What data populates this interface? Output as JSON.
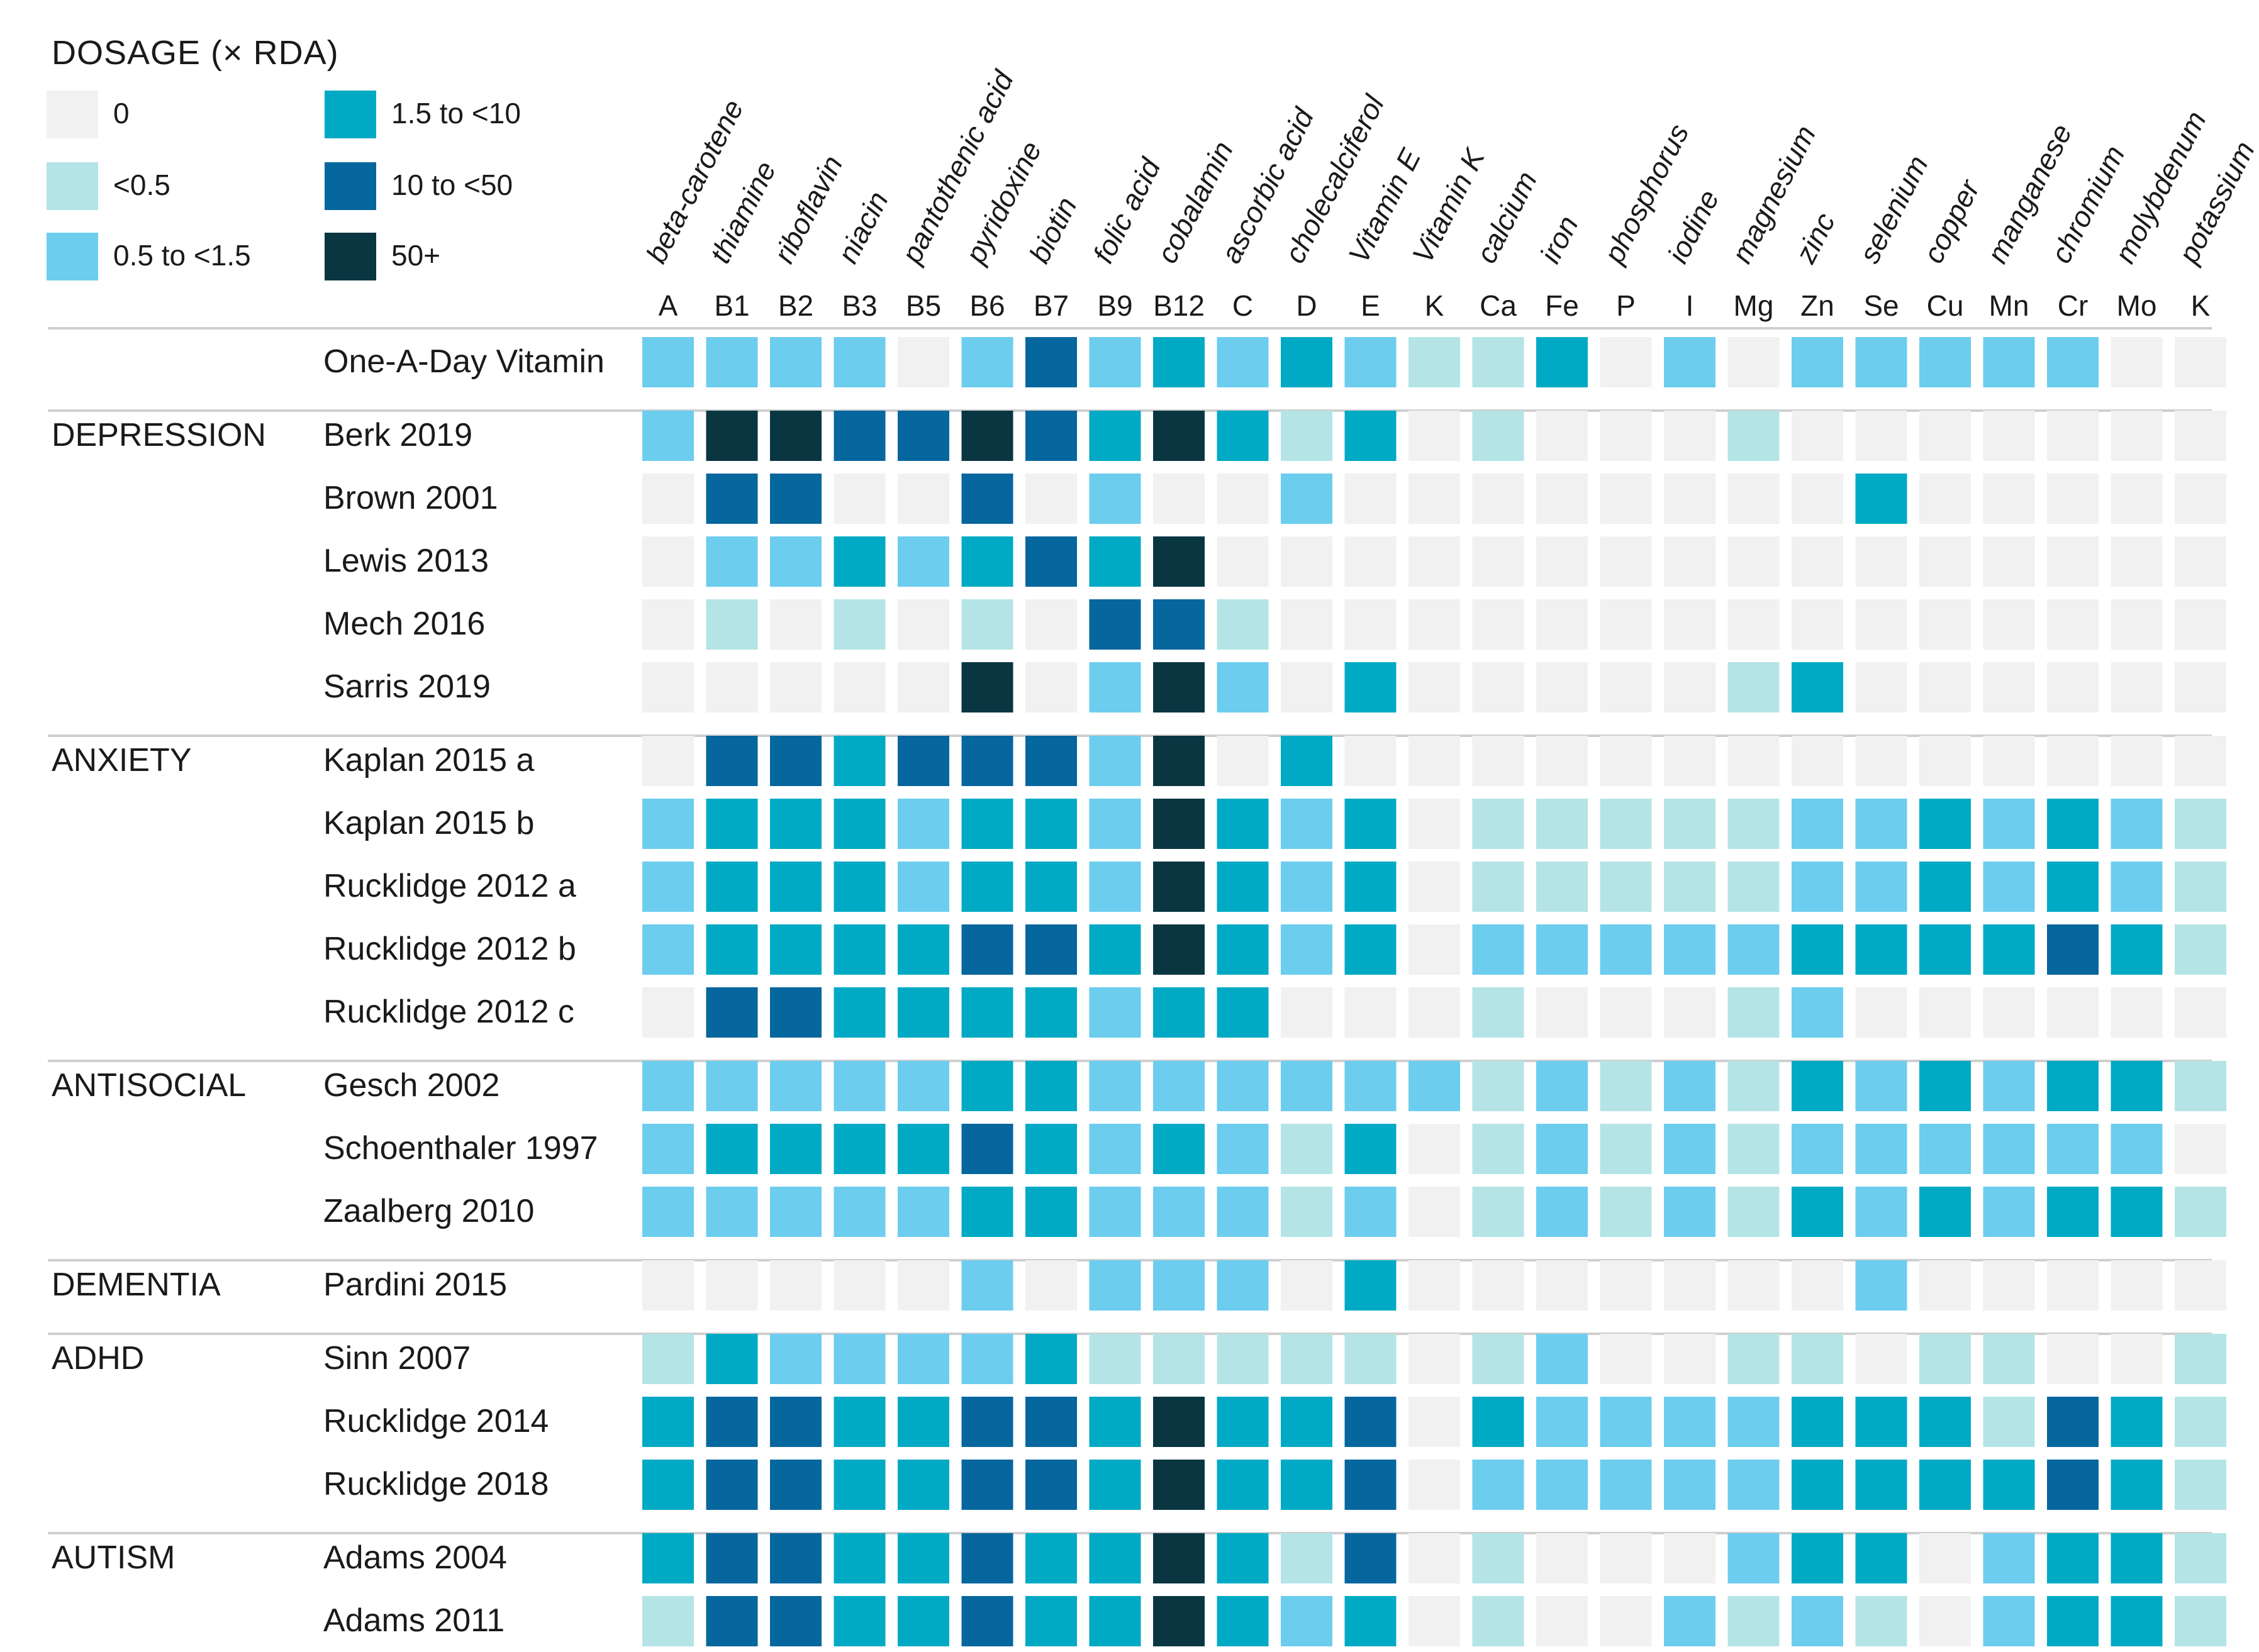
{
  "chart_data": {
    "type": "heatmap",
    "legend": {
      "title": "DOSAGE (× RDA)",
      "levels": [
        {
          "level": 0,
          "label": "0",
          "color": "#f1f1f1"
        },
        {
          "level": 1,
          "label": "<0.5",
          "color": "#b4e4e6"
        },
        {
          "level": 2,
          "label": "0.5 to <1.5",
          "color": "#6ccdee"
        },
        {
          "level": 3,
          "label": "1.5 to <10",
          "color": "#00aac4"
        },
        {
          "level": 4,
          "label": "10 to <50",
          "color": "#06669e"
        },
        {
          "level": 5,
          "label": "50+",
          "color": "#0a3642"
        }
      ]
    },
    "columns": [
      {
        "name": "beta-carotene",
        "abbr": "A"
      },
      {
        "name": "thiamine",
        "abbr": "B1"
      },
      {
        "name": "riboflavin",
        "abbr": "B2"
      },
      {
        "name": "niacin",
        "abbr": "B3"
      },
      {
        "name": "pantothenic acid",
        "abbr": "B5"
      },
      {
        "name": "pyridoxine",
        "abbr": "B6"
      },
      {
        "name": "biotin",
        "abbr": "B7"
      },
      {
        "name": "folic acid",
        "abbr": "B9"
      },
      {
        "name": "cobalamin",
        "abbr": "B12"
      },
      {
        "name": "ascorbic acid",
        "abbr": "C"
      },
      {
        "name": "cholecalciferol",
        "abbr": "D"
      },
      {
        "name": "Vitamin E",
        "abbr": "E"
      },
      {
        "name": "Vitamin K",
        "abbr": "K"
      },
      {
        "name": "calcium",
        "abbr": "Ca"
      },
      {
        "name": "iron",
        "abbr": "Fe"
      },
      {
        "name": "phosphorus",
        "abbr": "P"
      },
      {
        "name": "iodine",
        "abbr": "I"
      },
      {
        "name": "magnesium",
        "abbr": "Mg"
      },
      {
        "name": "zinc",
        "abbr": "Zn"
      },
      {
        "name": "selenium",
        "abbr": "Se"
      },
      {
        "name": "copper",
        "abbr": "Cu"
      },
      {
        "name": "manganese",
        "abbr": "Mn"
      },
      {
        "name": "chromium",
        "abbr": "Cr"
      },
      {
        "name": "molybdenum",
        "abbr": "Mo"
      },
      {
        "name": "potassium",
        "abbr": "K"
      }
    ],
    "groups": [
      {
        "label": "",
        "rows": [
          {
            "name": "One-A-Day Vitamin",
            "values": [
              2,
              2,
              2,
              2,
              0,
              2,
              4,
              2,
              3,
              2,
              3,
              2,
              1,
              1,
              3,
              0,
              2,
              0,
              2,
              2,
              2,
              2,
              2,
              0,
              0
            ]
          }
        ]
      },
      {
        "label": "DEPRESSION",
        "rows": [
          {
            "name": "Berk 2019",
            "values": [
              2,
              5,
              5,
              4,
              4,
              5,
              4,
              3,
              5,
              3,
              1,
              3,
              0,
              1,
              0,
              0,
              0,
              1,
              0,
              0,
              0,
              0,
              0,
              0,
              0
            ]
          },
          {
            "name": "Brown 2001",
            "values": [
              0,
              4,
              4,
              0,
              0,
              4,
              0,
              2,
              0,
              0,
              2,
              0,
              0,
              0,
              0,
              0,
              0,
              0,
              0,
              3,
              0,
              0,
              0,
              0,
              0
            ]
          },
          {
            "name": "Lewis 2013",
            "values": [
              0,
              2,
              2,
              3,
              2,
              3,
              4,
              3,
              5,
              0,
              0,
              0,
              0,
              0,
              0,
              0,
              0,
              0,
              0,
              0,
              0,
              0,
              0,
              0,
              0
            ]
          },
          {
            "name": "Mech 2016",
            "values": [
              0,
              1,
              0,
              1,
              0,
              1,
              0,
              4,
              4,
              1,
              0,
              0,
              0,
              0,
              0,
              0,
              0,
              0,
              0,
              0,
              0,
              0,
              0,
              0,
              0
            ]
          },
          {
            "name": "Sarris 2019",
            "values": [
              0,
              0,
              0,
              0,
              0,
              5,
              0,
              2,
              5,
              2,
              0,
              3,
              0,
              0,
              0,
              0,
              0,
              1,
              3,
              0,
              0,
              0,
              0,
              0,
              0
            ]
          }
        ]
      },
      {
        "label": "ANXIETY",
        "rows": [
          {
            "name": "Kaplan 2015 a",
            "values": [
              0,
              4,
              4,
              3,
              4,
              4,
              4,
              2,
              5,
              0,
              3,
              0,
              0,
              0,
              0,
              0,
              0,
              0,
              0,
              0,
              0,
              0,
              0,
              0,
              0
            ]
          },
          {
            "name": "Kaplan 2015 b",
            "values": [
              2,
              3,
              3,
              3,
              2,
              3,
              3,
              2,
              5,
              3,
              2,
              3,
              0,
              1,
              1,
              1,
              1,
              1,
              2,
              2,
              3,
              2,
              3,
              2,
              1
            ]
          },
          {
            "name": "Rucklidge 2012 a",
            "values": [
              2,
              3,
              3,
              3,
              2,
              3,
              3,
              2,
              5,
              3,
              2,
              3,
              0,
              1,
              1,
              1,
              1,
              1,
              2,
              2,
              3,
              2,
              3,
              2,
              1
            ]
          },
          {
            "name": "Rucklidge 2012 b",
            "values": [
              2,
              3,
              3,
              3,
              3,
              4,
              4,
              3,
              5,
              3,
              2,
              3,
              0,
              2,
              2,
              2,
              2,
              2,
              3,
              3,
              3,
              3,
              4,
              3,
              1
            ]
          },
          {
            "name": "Rucklidge 2012 c",
            "values": [
              0,
              4,
              4,
              3,
              3,
              3,
              3,
              2,
              3,
              3,
              0,
              0,
              0,
              1,
              0,
              0,
              0,
              1,
              2,
              0,
              0,
              0,
              0,
              0,
              0
            ]
          }
        ]
      },
      {
        "label": "ANTISOCIAL",
        "rows": [
          {
            "name": "Gesch 2002",
            "values": [
              2,
              2,
              2,
              2,
              2,
              3,
              3,
              2,
              2,
              2,
              2,
              2,
              2,
              1,
              2,
              1,
              2,
              1,
              3,
              2,
              3,
              2,
              3,
              3,
              1
            ]
          },
          {
            "name": "Schoenthaler 1997",
            "values": [
              2,
              3,
              3,
              3,
              3,
              4,
              3,
              2,
              3,
              2,
              1,
              3,
              0,
              1,
              2,
              1,
              2,
              1,
              2,
              2,
              2,
              2,
              2,
              2,
              0
            ]
          },
          {
            "name": "Zaalberg 2010",
            "values": [
              2,
              2,
              2,
              2,
              2,
              3,
              3,
              2,
              2,
              2,
              1,
              2,
              0,
              1,
              2,
              1,
              2,
              1,
              3,
              2,
              3,
              2,
              3,
              3,
              1
            ]
          }
        ]
      },
      {
        "label": "DEMENTIA",
        "rows": [
          {
            "name": "Pardini 2015",
            "values": [
              0,
              0,
              0,
              0,
              0,
              2,
              0,
              2,
              2,
              2,
              0,
              3,
              0,
              0,
              0,
              0,
              0,
              0,
              0,
              2,
              0,
              0,
              0,
              0,
              0
            ]
          }
        ]
      },
      {
        "label": "ADHD",
        "rows": [
          {
            "name": "Sinn 2007",
            "values": [
              1,
              3,
              2,
              2,
              2,
              2,
              3,
              1,
              1,
              1,
              1,
              1,
              0,
              1,
              2,
              0,
              0,
              1,
              1,
              0,
              1,
              1,
              0,
              0,
              1
            ]
          },
          {
            "name": "Rucklidge 2014",
            "values": [
              3,
              4,
              4,
              3,
              3,
              4,
              4,
              3,
              5,
              3,
              3,
              4,
              0,
              3,
              2,
              2,
              2,
              2,
              3,
              3,
              3,
              1,
              4,
              3,
              1
            ]
          },
          {
            "name": "Rucklidge 2018",
            "values": [
              3,
              4,
              4,
              3,
              3,
              4,
              4,
              3,
              5,
              3,
              3,
              4,
              0,
              2,
              2,
              2,
              2,
              2,
              3,
              3,
              3,
              3,
              4,
              3,
              1
            ]
          }
        ]
      },
      {
        "label": "AUTISM",
        "rows": [
          {
            "name": "Adams 2004",
            "values": [
              3,
              4,
              4,
              3,
              3,
              4,
              3,
              3,
              5,
              3,
              1,
              4,
              0,
              1,
              0,
              0,
              0,
              2,
              3,
              3,
              0,
              2,
              3,
              3,
              1
            ]
          },
          {
            "name": "Adams 2011",
            "values": [
              1,
              4,
              4,
              3,
              3,
              4,
              3,
              3,
              5,
              3,
              2,
              3,
              0,
              1,
              0,
              0,
              2,
              1,
              2,
              1,
              0,
              2,
              3,
              3,
              1
            ]
          }
        ]
      }
    ]
  }
}
